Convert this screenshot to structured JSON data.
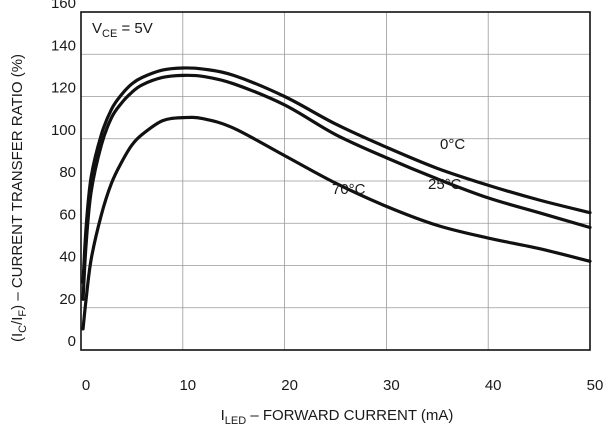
{
  "chart_data": {
    "type": "line",
    "title": "",
    "xlabel": {
      "main": "I",
      "sub": "LED",
      "rest": " – FORWARD CURRENT (mA)"
    },
    "ylabel": {
      "p1": "(I",
      "s1": "C",
      "p2": "/I",
      "s2": "F",
      "p3": ") – CURRENT TRANSFER RATIO (%)"
    },
    "condition": {
      "main": "V",
      "sub": "CE",
      "rest": " = 5V"
    },
    "xlim": [
      0,
      50
    ],
    "ylim": [
      0,
      160
    ],
    "x_ticks": [
      "0",
      "10",
      "20",
      "30",
      "40",
      "50"
    ],
    "y_ticks": [
      "0",
      "20",
      "40",
      "60",
      "80",
      "100",
      "120",
      "140",
      "160"
    ],
    "grid": true,
    "series": [
      {
        "name": "0°C",
        "x": [
          0.2,
          0.5,
          1,
          2,
          3,
          4,
          5,
          6,
          8,
          10,
          12,
          15,
          20,
          25,
          30,
          35,
          40,
          45,
          50
        ],
        "y": [
          32,
          58,
          82,
          102,
          114,
          121,
          126,
          129,
          132.5,
          133.5,
          133,
          130,
          120,
          107,
          96,
          86,
          78,
          71,
          65
        ]
      },
      {
        "name": "25°C",
        "x": [
          0.2,
          0.5,
          1,
          2,
          3,
          4,
          5,
          6,
          8,
          10,
          12,
          15,
          20,
          25,
          30,
          35,
          40,
          45,
          50
        ],
        "y": [
          24,
          50,
          75,
          97,
          110,
          117,
          122,
          125.5,
          129,
          130,
          129.5,
          126,
          116,
          102,
          91,
          81,
          72,
          65,
          58
        ]
      },
      {
        "name": "70°C",
        "x": [
          0.2,
          0.5,
          1,
          2,
          3,
          4,
          5,
          6,
          8,
          10,
          12,
          15,
          20,
          25,
          30,
          35,
          40,
          45,
          50
        ],
        "y": [
          10,
          24,
          43,
          64,
          79,
          89,
          97,
          102,
          108.5,
          110,
          109.5,
          105,
          92,
          79,
          68,
          59,
          53,
          48,
          42
        ]
      }
    ]
  }
}
